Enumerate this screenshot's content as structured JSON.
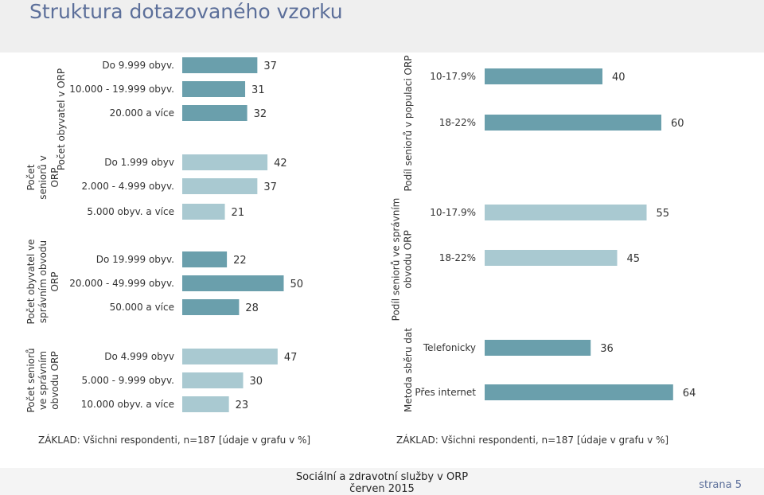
{
  "header": {
    "title": "Struktura dotazovaného vzorku"
  },
  "base_left": "ZÁKLAD: Všichni respondenti, n=187 [údaje v grafu v %]",
  "base_right": "ZÁKLAD: Všichni respondenti, n=187 [údaje v grafu v %]",
  "footer": {
    "line1": "Sociální a zdravotní služby v ORP",
    "line2": "červen 2015",
    "page": "strana 5"
  },
  "colors": {
    "dark": "#6a9fac",
    "light": "#a9c9d1"
  },
  "chart_data": [
    {
      "type": "bar",
      "orientation": "horizontal",
      "groups": [
        {
          "label": "Počet obyvatel v ORP",
          "bars": [
            {
              "category": "Do 9.999 obyv.",
              "value": 37,
              "shade": "dark"
            },
            {
              "category": "10.000 - 19.999 obyv.",
              "value": 31,
              "shade": "dark"
            },
            {
              "category": "20.000 a více",
              "value": 32,
              "shade": "dark"
            }
          ]
        },
        {
          "label": "Počet seniorů v ORP",
          "bars": [
            {
              "category": "Do 1.999 obyv",
              "value": 42,
              "shade": "light"
            },
            {
              "category": "2.000 - 4.999 obyv.",
              "value": 37,
              "shade": "light"
            },
            {
              "category": "5.000 obyv. a více",
              "value": 21,
              "shade": "light"
            }
          ]
        },
        {
          "label": "Počet obyvatel ve správním obvodu ORP",
          "bars": [
            {
              "category": "Do 19.999 obyv.",
              "value": 22,
              "shade": "dark"
            },
            {
              "category": "20.000 - 49.999 obyv.",
              "value": 50,
              "shade": "dark"
            },
            {
              "category": "50.000 a více",
              "value": 28,
              "shade": "dark"
            }
          ]
        },
        {
          "label": "Počet seniorů ve správním obvodu ORP",
          "bars": [
            {
              "category": "Do 4.999 obyv",
              "value": 47,
              "shade": "light"
            },
            {
              "category": "5.000 - 9.999 obyv.",
              "value": 30,
              "shade": "light"
            },
            {
              "category": "10.000 obyv. a více",
              "value": 23,
              "shade": "light"
            }
          ]
        }
      ]
    },
    {
      "type": "bar",
      "orientation": "horizontal",
      "groups": [
        {
          "label": "Podíl seniorů v populaci ORP",
          "bars": [
            {
              "category": "10-17.9%",
              "value": 40,
              "shade": "dark"
            },
            {
              "category": "18-22%",
              "value": 60,
              "shade": "dark"
            }
          ]
        },
        {
          "label": "Podíl seniorů ve správním obvodu ORP",
          "bars": [
            {
              "category": "10-17.9%",
              "value": 55,
              "shade": "light"
            },
            {
              "category": "18-22%",
              "value": 45,
              "shade": "light"
            }
          ]
        },
        {
          "label": "Metoda sběru dat",
          "bars": [
            {
              "category": "Telefonicky",
              "value": 36,
              "shade": "dark"
            },
            {
              "category": "Přes internet",
              "value": 64,
              "shade": "dark"
            }
          ]
        }
      ]
    }
  ]
}
